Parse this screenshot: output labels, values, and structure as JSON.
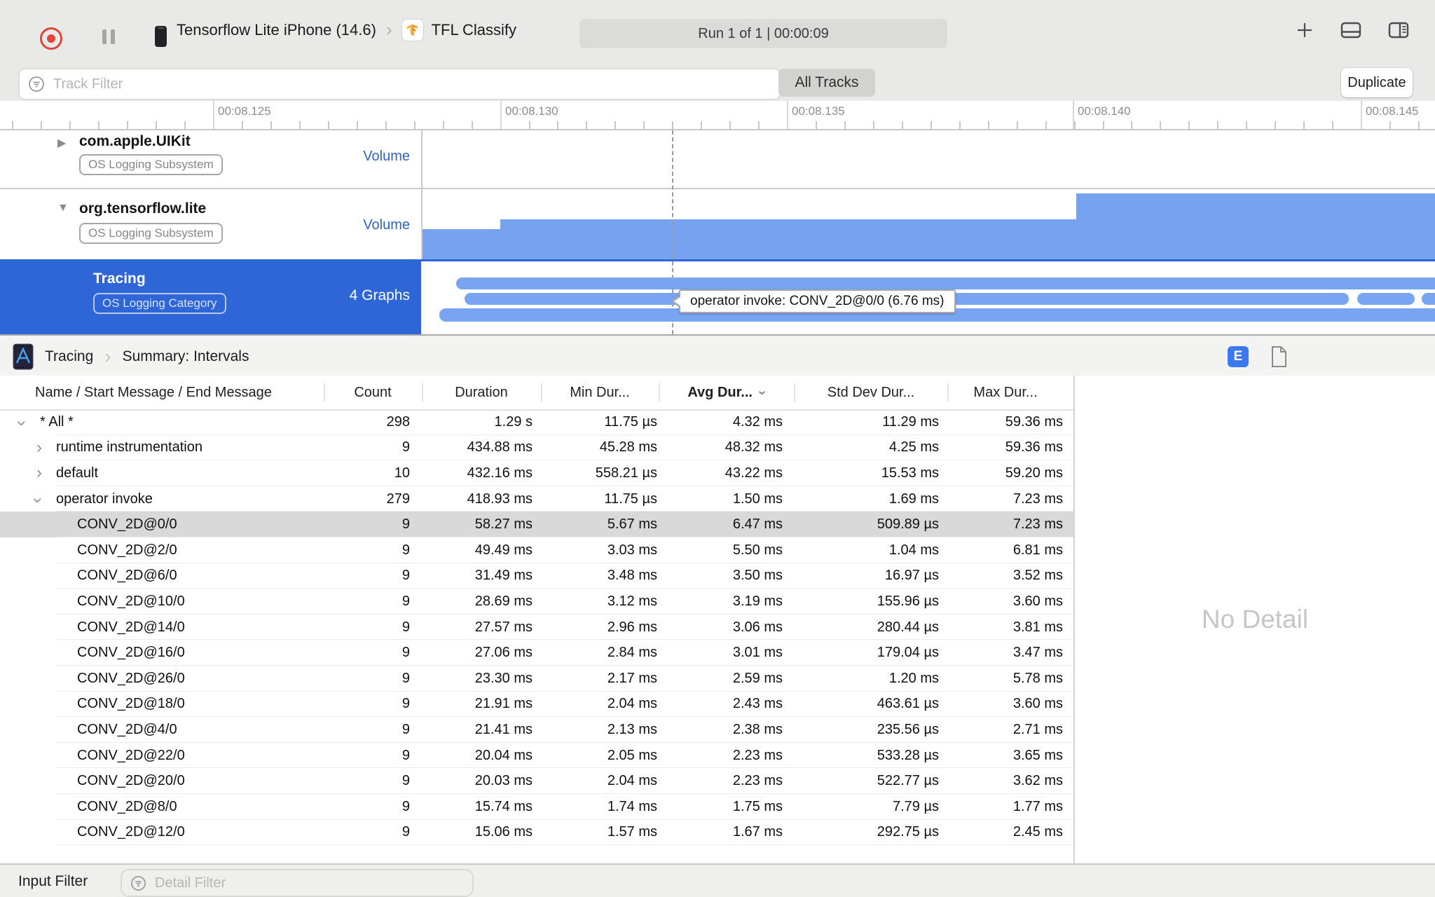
{
  "toolbar": {
    "device_label": "Tensorflow Lite iPhone (14.6)",
    "app_label": "TFL Classify",
    "run_status": "Run 1 of 1  |  00:00:09"
  },
  "filter_bar": {
    "track_filter_placeholder": "Track Filter",
    "all_tracks_label": "All Tracks",
    "duplicate_label": "Duplicate"
  },
  "ruler": {
    "ticks": [
      "00:08.125",
      "00:08.130",
      "00:08.135",
      "00:08.140",
      "00:08.145"
    ]
  },
  "tracks": [
    {
      "name": "com.apple.UIKit",
      "badge": "OS Logging Subsystem",
      "meta": "Volume",
      "state": "collapsed"
    },
    {
      "name": "org.tensorflow.lite",
      "badge": "OS Logging Subsystem",
      "meta": "Volume",
      "state": "expanded"
    },
    {
      "name": "Tracing",
      "badge": "OS Logging Category",
      "meta": "4 Graphs",
      "state": "selected"
    }
  ],
  "tracing": {
    "tooltip": "operator invoke: CONV_2D@0/0 (6.76 ms)"
  },
  "summary": {
    "breadcrumb": [
      "Tracing",
      "Summary: Intervals"
    ],
    "columns": [
      "Name / Start Message / End Message",
      "Count",
      "Duration",
      "Min Dur...",
      "Avg Dur...",
      "Std Dev Dur...",
      "Max Dur..."
    ],
    "sort_column": "Avg Dur...",
    "rows": [
      {
        "name": "* All *",
        "level": 0,
        "disclosure": "expanded",
        "selected": false,
        "count": "298",
        "duration": "1.29 s",
        "min": "11.75 µs",
        "avg": "4.32 ms",
        "std": "11.29 ms",
        "max": "59.36 ms"
      },
      {
        "name": "runtime instrumentation",
        "level": 1,
        "disclosure": "collapsed",
        "selected": false,
        "count": "9",
        "duration": "434.88 ms",
        "min": "45.28 ms",
        "avg": "48.32 ms",
        "std": "4.25 ms",
        "max": "59.36 ms"
      },
      {
        "name": "default",
        "level": 1,
        "disclosure": "collapsed",
        "selected": false,
        "count": "10",
        "duration": "432.16 ms",
        "min": "558.21 µs",
        "avg": "43.22 ms",
        "std": "15.53 ms",
        "max": "59.20 ms"
      },
      {
        "name": "operator invoke",
        "level": 1,
        "disclosure": "expanded",
        "selected": false,
        "count": "279",
        "duration": "418.93 ms",
        "min": "11.75 µs",
        "avg": "1.50 ms",
        "std": "1.69 ms",
        "max": "7.23 ms"
      },
      {
        "name": "CONV_2D@0/0",
        "level": 2,
        "disclosure": null,
        "selected": true,
        "count": "9",
        "duration": "58.27 ms",
        "min": "5.67 ms",
        "avg": "6.47 ms",
        "std": "509.89 µs",
        "max": "7.23 ms"
      },
      {
        "name": "CONV_2D@2/0",
        "level": 2,
        "disclosure": null,
        "selected": false,
        "count": "9",
        "duration": "49.49 ms",
        "min": "3.03 ms",
        "avg": "5.50 ms",
        "std": "1.04 ms",
        "max": "6.81 ms"
      },
      {
        "name": "CONV_2D@6/0",
        "level": 2,
        "disclosure": null,
        "selected": false,
        "count": "9",
        "duration": "31.49 ms",
        "min": "3.48 ms",
        "avg": "3.50 ms",
        "std": "16.97 µs",
        "max": "3.52 ms"
      },
      {
        "name": "CONV_2D@10/0",
        "level": 2,
        "disclosure": null,
        "selected": false,
        "count": "9",
        "duration": "28.69 ms",
        "min": "3.12 ms",
        "avg": "3.19 ms",
        "std": "155.96 µs",
        "max": "3.60 ms"
      },
      {
        "name": "CONV_2D@14/0",
        "level": 2,
        "disclosure": null,
        "selected": false,
        "count": "9",
        "duration": "27.57 ms",
        "min": "2.96 ms",
        "avg": "3.06 ms",
        "std": "280.44 µs",
        "max": "3.81 ms"
      },
      {
        "name": "CONV_2D@16/0",
        "level": 2,
        "disclosure": null,
        "selected": false,
        "count": "9",
        "duration": "27.06 ms",
        "min": "2.84 ms",
        "avg": "3.01 ms",
        "std": "179.04 µs",
        "max": "3.47 ms"
      },
      {
        "name": "CONV_2D@26/0",
        "level": 2,
        "disclosure": null,
        "selected": false,
        "count": "9",
        "duration": "23.30 ms",
        "min": "2.17 ms",
        "avg": "2.59 ms",
        "std": "1.20 ms",
        "max": "5.78 ms"
      },
      {
        "name": "CONV_2D@18/0",
        "level": 2,
        "disclosure": null,
        "selected": false,
        "count": "9",
        "duration": "21.91 ms",
        "min": "2.04 ms",
        "avg": "2.43 ms",
        "std": "463.61 µs",
        "max": "3.60 ms"
      },
      {
        "name": "CONV_2D@4/0",
        "level": 2,
        "disclosure": null,
        "selected": false,
        "count": "9",
        "duration": "21.41 ms",
        "min": "2.13 ms",
        "avg": "2.38 ms",
        "std": "235.56 µs",
        "max": "2.71 ms"
      },
      {
        "name": "CONV_2D@22/0",
        "level": 2,
        "disclosure": null,
        "selected": false,
        "count": "9",
        "duration": "20.04 ms",
        "min": "2.05 ms",
        "avg": "2.23 ms",
        "std": "533.28 µs",
        "max": "3.65 ms"
      },
      {
        "name": "CONV_2D@20/0",
        "level": 2,
        "disclosure": null,
        "selected": false,
        "count": "9",
        "duration": "20.03 ms",
        "min": "2.04 ms",
        "avg": "2.23 ms",
        "std": "522.77 µs",
        "max": "3.62 ms"
      },
      {
        "name": "CONV_2D@8/0",
        "level": 2,
        "disclosure": null,
        "selected": false,
        "count": "9",
        "duration": "15.74 ms",
        "min": "1.74 ms",
        "avg": "1.75 ms",
        "std": "7.79 µs",
        "max": "1.77 ms"
      },
      {
        "name": "CONV_2D@12/0",
        "level": 2,
        "disclosure": null,
        "selected": false,
        "count": "9",
        "duration": "15.06 ms",
        "min": "1.57 ms",
        "avg": "1.67 ms",
        "std": "292.75 µs",
        "max": "2.45 ms"
      }
    ]
  },
  "detail_pane": {
    "no_detail": "No Detail"
  },
  "bottom": {
    "input_filter_label": "Input Filter",
    "detail_filter_placeholder": "Detail Filter"
  },
  "icons": {
    "record": "record-circle",
    "pause": "pause-bars",
    "device": "iphone",
    "app": "tensorflow-logo",
    "add": "plus",
    "layout_bottom": "pane-bottom",
    "layout_right": "pane-right",
    "filter": "filter-circle",
    "breadcrumb_instrument": "instrument-doc",
    "detail_e": "E-badge",
    "detail_doc": "document"
  }
}
